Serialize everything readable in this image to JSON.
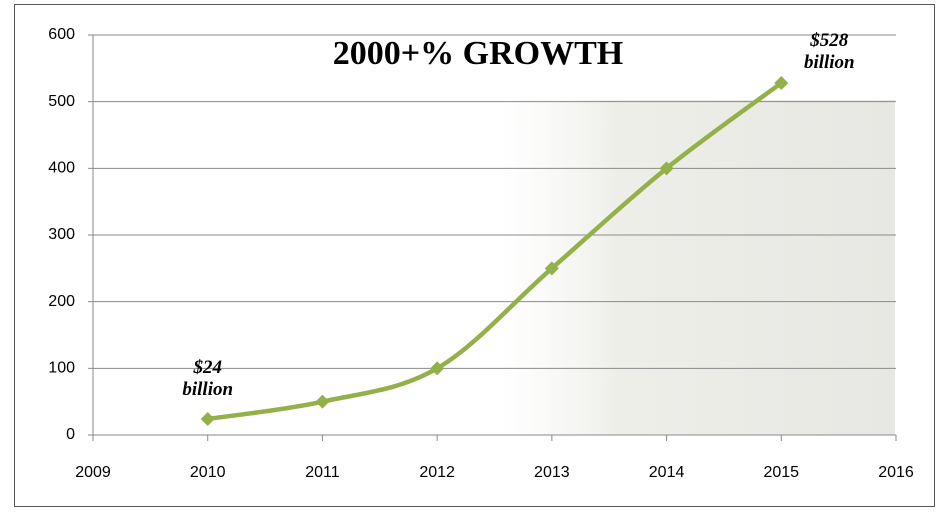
{
  "chart_data": {
    "type": "line",
    "title": "2000+% GROWTH",
    "x": [
      2010,
      2011,
      2012,
      2013,
      2014,
      2015
    ],
    "values": [
      24,
      50,
      100,
      250,
      400,
      528
    ],
    "value_labels": [
      "$24 billion",
      null,
      null,
      null,
      null,
      "$528 billion"
    ],
    "color": "#93b148",
    "xlim": [
      2009,
      2016
    ],
    "xticks": [
      2009,
      2010,
      2011,
      2012,
      2013,
      2014,
      2015,
      2016
    ],
    "ylim": [
      0,
      600
    ],
    "yticks": [
      0,
      100,
      200,
      300,
      400,
      500,
      600
    ],
    "grid": true
  }
}
